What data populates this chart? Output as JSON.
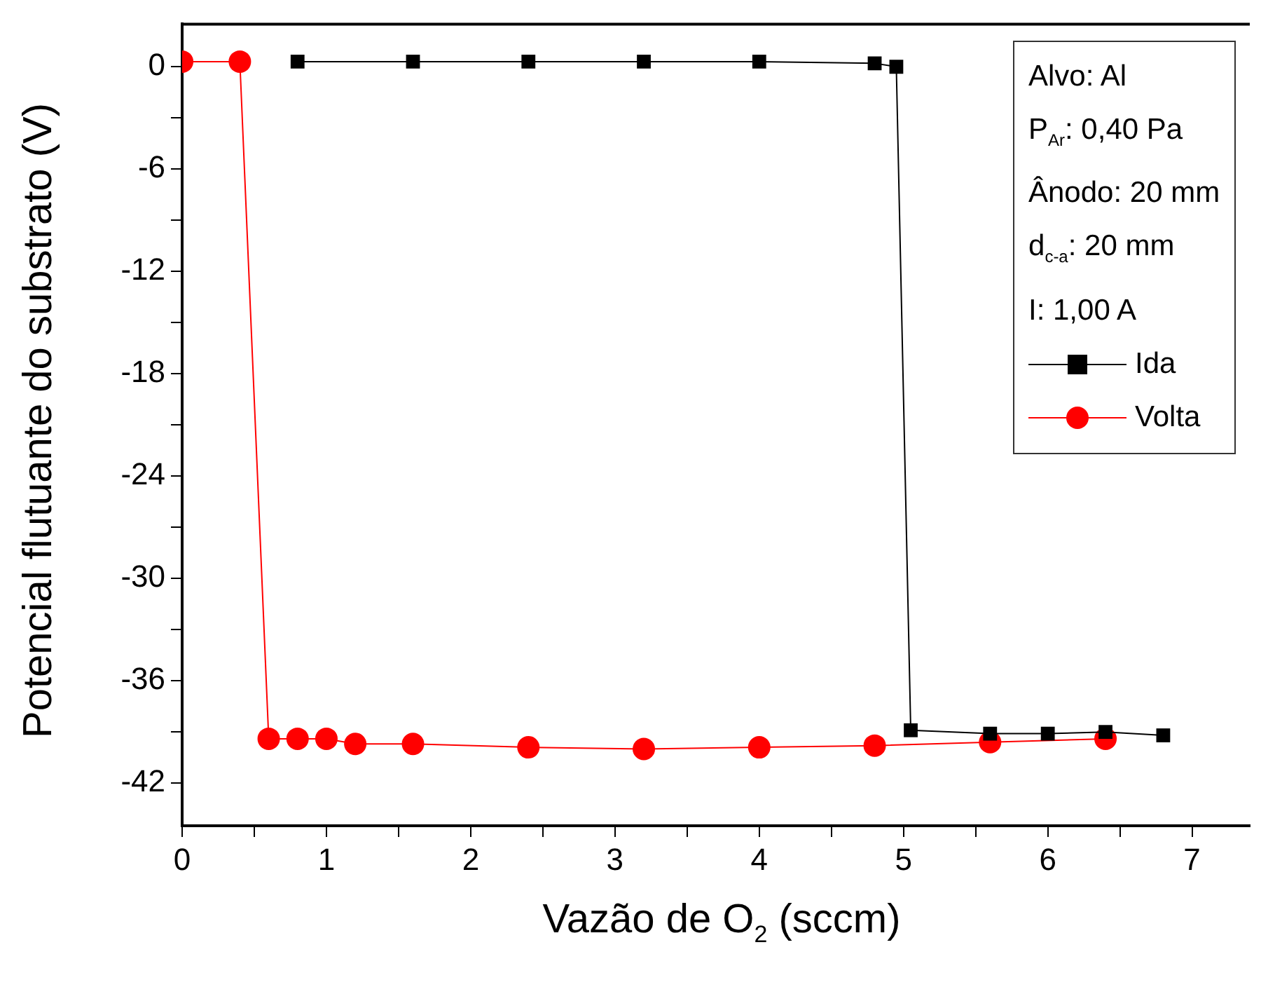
{
  "chart_data": {
    "type": "line",
    "xlabel": "Vazão de O$_{2}$ (sccm)",
    "ylabel": "Potencial flutuante do substrato (V)",
    "annotations": [
      "Alvo: Al",
      "P$_{Ar}$: 0,40 Pa",
      "Ânodo: 20 mm",
      "d$_{c-a}$: 20 mm",
      "I: 1,00 A"
    ],
    "xlim": [
      0,
      7.4
    ],
    "ylim": [
      -44.5,
      2.5
    ],
    "xticks": [
      0,
      {
        "value": 0.5,
        "label": null
      },
      1,
      {
        "value": 1.5,
        "label": null
      },
      2,
      {
        "value": 2.5,
        "label": null
      },
      3,
      {
        "value": 3.5,
        "label": null
      },
      4,
      {
        "value": 4.5,
        "label": null
      },
      5,
      {
        "value": 5.5,
        "label": null
      },
      6,
      {
        "value": 6.5,
        "label": null
      },
      7
    ],
    "yticks": [
      0,
      {
        "value": -3,
        "label": null
      },
      -6,
      {
        "value": -9,
        "label": null
      },
      -12,
      {
        "value": -15,
        "label": null
      },
      -18,
      {
        "value": -21,
        "label": null
      },
      -24,
      {
        "value": -27,
        "label": null
      },
      -30,
      {
        "value": -33,
        "label": null
      },
      -36,
      {
        "value": -39,
        "label": null
      },
      -42
    ],
    "grid": false,
    "legend": "top right",
    "series": [
      {
        "name": "Ida",
        "color": "#000000",
        "marker": "square",
        "x": [
          0.8,
          1.6,
          2.4,
          3.2,
          4.0,
          4.8,
          4.95,
          5.05,
          5.6,
          6.0,
          6.4,
          6.8
        ],
        "values": [
          0.3,
          0.3,
          0.3,
          0.3,
          0.3,
          0.2,
          0,
          -38.9,
          -39.1,
          -39.1,
          -39.0,
          -39.2
        ]
      },
      {
        "name": "Volta",
        "color": "#ff0000",
        "marker": "circle",
        "x": [
          0,
          0.4,
          0.6,
          0.8,
          1.0,
          1.2,
          1.6,
          2.4,
          3.2,
          4.0,
          4.8,
          5.6,
          6.4
        ],
        "values": [
          0.3,
          0.3,
          -39.4,
          -39.4,
          -39.4,
          -39.7,
          -39.7,
          -39.9,
          -40.0,
          -39.9,
          -39.8,
          -39.6,
          -39.4
        ]
      }
    ]
  }
}
